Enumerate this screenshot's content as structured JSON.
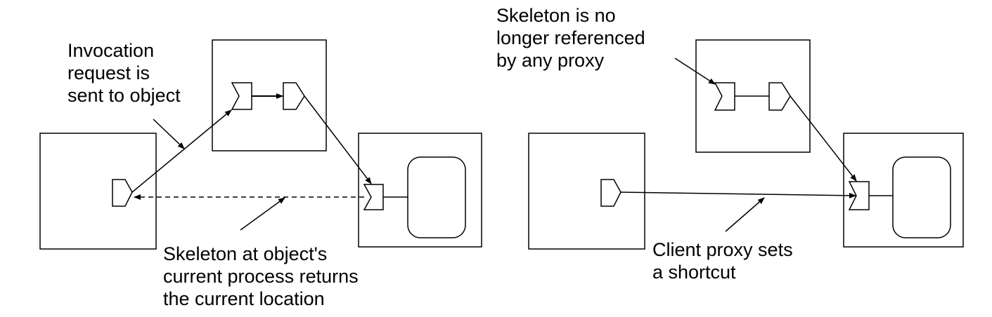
{
  "left_panel": {
    "request_label": "Invocation\nrequest is\nsent to object",
    "return_label": "Skeleton at object's\ncurrent process returns\nthe current location"
  },
  "right_panel": {
    "skeleton_label": "Skeleton is no\nlonger referenced\nby any proxy",
    "shortcut_label": "Client proxy sets\na shortcut"
  },
  "colors": {
    "line": "#000000",
    "background": "#ffffff"
  }
}
